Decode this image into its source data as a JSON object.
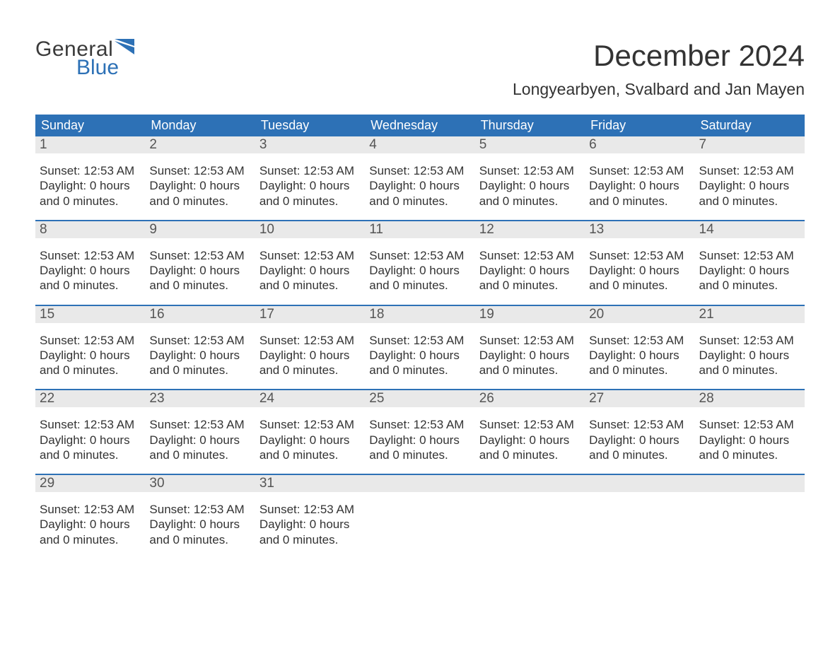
{
  "logo": {
    "text1": "General",
    "text2": "Blue",
    "shape_color": "#2d71b6",
    "text1_color": "#3a3a3a"
  },
  "title": "December 2024",
  "location": "Longyearbyen, Svalbard and Jan Mayen",
  "colors": {
    "header_bg": "#2d71b6",
    "header_text": "#ffffff",
    "daynum_bg": "#e9e9e9",
    "daynum_text": "#555555",
    "body_text": "#333333",
    "week_border": "#2d71b6",
    "page_bg": "#ffffff"
  },
  "typography": {
    "title_fontsize": 42,
    "location_fontsize": 23,
    "weekday_fontsize": 18,
    "daynum_fontsize": 19,
    "cell_fontsize": 17,
    "logo_fontsize": 30
  },
  "weekdays": [
    "Sunday",
    "Monday",
    "Tuesday",
    "Wednesday",
    "Thursday",
    "Friday",
    "Saturday"
  ],
  "day_text": {
    "line1": "Sunset: 12:53 AM",
    "line2": "Daylight: 0 hours",
    "line3": "and 0 minutes."
  },
  "weeks": [
    {
      "days": [
        1,
        2,
        3,
        4,
        5,
        6,
        7
      ]
    },
    {
      "days": [
        8,
        9,
        10,
        11,
        12,
        13,
        14
      ]
    },
    {
      "days": [
        15,
        16,
        17,
        18,
        19,
        20,
        21
      ]
    },
    {
      "days": [
        22,
        23,
        24,
        25,
        26,
        27,
        28
      ]
    },
    {
      "days": [
        29,
        30,
        31,
        null,
        null,
        null,
        null
      ]
    }
  ]
}
